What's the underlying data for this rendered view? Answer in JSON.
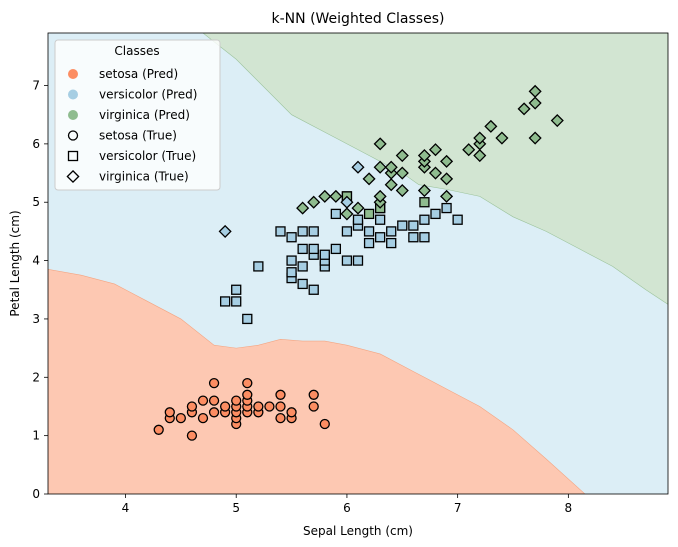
{
  "chart_data": {
    "type": "scatter",
    "title": "k-NN (Weighted Classes)",
    "xlabel": "Sepal Length (cm)",
    "ylabel": "Petal Length (cm)",
    "xlim": [
      3.3,
      8.9
    ],
    "ylim": [
      0,
      7.9
    ],
    "xticks": [
      4,
      5,
      6,
      7,
      8
    ],
    "yticks": [
      0,
      1,
      2,
      3,
      4,
      5,
      6,
      7
    ],
    "grid": false,
    "legend": {
      "title": "Classes",
      "placement": "upper-left",
      "entries": [
        {
          "label": "setosa (Pred)",
          "marker": "dot",
          "color": "#FC8D62"
        },
        {
          "label": "versicolor (Pred)",
          "marker": "dot",
          "color": "#A6CEE3"
        },
        {
          "label": "virginica (Pred)",
          "marker": "dot",
          "color": "#8FBC8F"
        },
        {
          "label": "setosa (True)",
          "marker": "circle",
          "color": "#000000"
        },
        {
          "label": "versicolor (True)",
          "marker": "square",
          "color": "#000000"
        },
        {
          "label": "virginica (True)",
          "marker": "diamond",
          "color": "#000000"
        }
      ]
    },
    "colors": {
      "setosa": "#FC8D62",
      "versicolor": "#A6CEE3",
      "virginica": "#8FBC8F",
      "region_setosa": "#FDC8B2",
      "region_versicolor": "#DCEEF6",
      "region_virginica": "#D2E5D2"
    },
    "decision_regions": {
      "setosa_versicolor_boundary": [
        [
          3.3,
          3.85
        ],
        [
          3.6,
          3.75
        ],
        [
          3.9,
          3.6
        ],
        [
          4.2,
          3.3
        ],
        [
          4.5,
          3.0
        ],
        [
          4.8,
          2.55
        ],
        [
          5.0,
          2.5
        ],
        [
          5.2,
          2.55
        ],
        [
          5.4,
          2.65
        ],
        [
          5.6,
          2.62
        ],
        [
          5.8,
          2.62
        ],
        [
          6.0,
          2.55
        ],
        [
          6.3,
          2.4
        ],
        [
          6.6,
          2.1
        ],
        [
          6.9,
          1.8
        ],
        [
          7.2,
          1.5
        ],
        [
          7.5,
          1.1
        ],
        [
          7.8,
          0.6
        ],
        [
          8.15,
          0.0
        ]
      ],
      "versicolor_virginica_boundary": [
        [
          4.7,
          7.9
        ],
        [
          5.0,
          7.45
        ],
        [
          5.5,
          6.5
        ],
        [
          5.9,
          6.1
        ],
        [
          6.2,
          5.8
        ],
        [
          6.4,
          5.6
        ],
        [
          6.5,
          5.5
        ],
        [
          6.65,
          5.3
        ],
        [
          6.9,
          5.22
        ],
        [
          7.2,
          5.1
        ],
        [
          7.5,
          4.75
        ],
        [
          7.8,
          4.5
        ],
        [
          8.1,
          4.2
        ],
        [
          8.4,
          3.9
        ],
        [
          8.7,
          3.5
        ],
        [
          8.9,
          3.25
        ]
      ]
    },
    "series": [
      {
        "name": "setosa",
        "true_marker": "circle",
        "points": [
          [
            4.3,
            1.1
          ],
          [
            4.4,
            1.3
          ],
          [
            4.4,
            1.4
          ],
          [
            4.5,
            1.3
          ],
          [
            4.6,
            1.0
          ],
          [
            4.6,
            1.4
          ],
          [
            4.6,
            1.5
          ],
          [
            4.7,
            1.3
          ],
          [
            4.7,
            1.6
          ],
          [
            4.8,
            1.4
          ],
          [
            4.8,
            1.6
          ],
          [
            4.8,
            1.9
          ],
          [
            4.9,
            1.4
          ],
          [
            4.9,
            1.5
          ],
          [
            5.0,
            1.2
          ],
          [
            5.0,
            1.3
          ],
          [
            5.0,
            1.4
          ],
          [
            5.0,
            1.5
          ],
          [
            5.0,
            1.6
          ],
          [
            5.1,
            1.4
          ],
          [
            5.1,
            1.5
          ],
          [
            5.1,
            1.6
          ],
          [
            5.1,
            1.7
          ],
          [
            5.1,
            1.9
          ],
          [
            5.2,
            1.4
          ],
          [
            5.2,
            1.5
          ],
          [
            5.3,
            1.5
          ],
          [
            5.4,
            1.3
          ],
          [
            5.4,
            1.5
          ],
          [
            5.4,
            1.7
          ],
          [
            5.5,
            1.3
          ],
          [
            5.5,
            1.4
          ],
          [
            5.7,
            1.5
          ],
          [
            5.7,
            1.7
          ],
          [
            5.8,
            1.2
          ]
        ],
        "predicted": "setosa"
      },
      {
        "name": "versicolor",
        "true_marker": "square",
        "points": [
          [
            4.9,
            3.3
          ],
          [
            5.0,
            3.3
          ],
          [
            5.0,
            3.5
          ],
          [
            5.1,
            3.0
          ],
          [
            5.2,
            3.9
          ],
          [
            5.4,
            4.5
          ],
          [
            5.5,
            3.7
          ],
          [
            5.5,
            3.8
          ],
          [
            5.5,
            4.0
          ],
          [
            5.5,
            4.4
          ],
          [
            5.6,
            3.6
          ],
          [
            5.6,
            3.9
          ],
          [
            5.6,
            4.2
          ],
          [
            5.6,
            4.5
          ],
          [
            5.7,
            3.5
          ],
          [
            5.7,
            4.1
          ],
          [
            5.7,
            4.2
          ],
          [
            5.7,
            4.5
          ],
          [
            5.8,
            3.9
          ],
          [
            5.8,
            4.0
          ],
          [
            5.8,
            4.1
          ],
          [
            5.9,
            4.2
          ],
          [
            5.9,
            4.8
          ],
          [
            6.0,
            4.0
          ],
          [
            6.0,
            4.5
          ],
          [
            6.0,
            5.1
          ],
          [
            6.1,
            4.0
          ],
          [
            6.1,
            4.6
          ],
          [
            6.1,
            4.7
          ],
          [
            6.2,
            4.3
          ],
          [
            6.2,
            4.5
          ],
          [
            6.3,
            4.4
          ],
          [
            6.3,
            4.7
          ],
          [
            6.3,
            4.9
          ],
          [
            6.4,
            4.3
          ],
          [
            6.4,
            4.5
          ],
          [
            6.5,
            4.6
          ],
          [
            6.6,
            4.4
          ],
          [
            6.6,
            4.6
          ],
          [
            6.7,
            4.4
          ],
          [
            6.7,
            4.7
          ],
          [
            6.8,
            4.8
          ],
          [
            6.9,
            4.9
          ],
          [
            7.0,
            4.7
          ]
        ],
        "predicted": "versicolor"
      },
      {
        "name": "versicolor",
        "true_marker": "square",
        "points": [
          [
            6.0,
            5.1
          ],
          [
            6.2,
            4.8
          ],
          [
            6.3,
            4.9
          ],
          [
            6.7,
            5.0
          ]
        ],
        "predicted": "virginica"
      },
      {
        "name": "virginica",
        "true_marker": "diamond",
        "points": [
          [
            5.6,
            4.9
          ],
          [
            5.7,
            5.0
          ],
          [
            5.8,
            5.1
          ],
          [
            5.9,
            5.1
          ],
          [
            6.0,
            4.8
          ],
          [
            6.1,
            4.9
          ],
          [
            6.2,
            5.4
          ],
          [
            6.3,
            5.0
          ],
          [
            6.3,
            5.1
          ],
          [
            6.3,
            5.6
          ],
          [
            6.3,
            6.0
          ],
          [
            6.4,
            5.3
          ],
          [
            6.4,
            5.5
          ],
          [
            6.4,
            5.6
          ],
          [
            6.5,
            5.2
          ],
          [
            6.5,
            5.5
          ],
          [
            6.5,
            5.8
          ],
          [
            6.7,
            5.2
          ],
          [
            6.7,
            5.6
          ],
          [
            6.7,
            5.7
          ],
          [
            6.7,
            5.8
          ],
          [
            6.8,
            5.5
          ],
          [
            6.8,
            5.9
          ],
          [
            6.9,
            5.1
          ],
          [
            6.9,
            5.4
          ],
          [
            6.9,
            5.7
          ],
          [
            7.1,
            5.9
          ],
          [
            7.2,
            5.8
          ],
          [
            7.2,
            6.0
          ],
          [
            7.2,
            6.1
          ],
          [
            7.3,
            6.3
          ],
          [
            7.4,
            6.1
          ],
          [
            7.6,
            6.6
          ],
          [
            7.7,
            6.1
          ],
          [
            7.7,
            6.7
          ],
          [
            7.7,
            6.9
          ],
          [
            7.9,
            6.4
          ]
        ],
        "predicted": "virginica"
      },
      {
        "name": "virginica",
        "true_marker": "diamond",
        "points": [
          [
            4.9,
            4.5
          ],
          [
            6.0,
            5.0
          ],
          [
            6.1,
            5.6
          ]
        ],
        "predicted": "versicolor"
      }
    ]
  }
}
